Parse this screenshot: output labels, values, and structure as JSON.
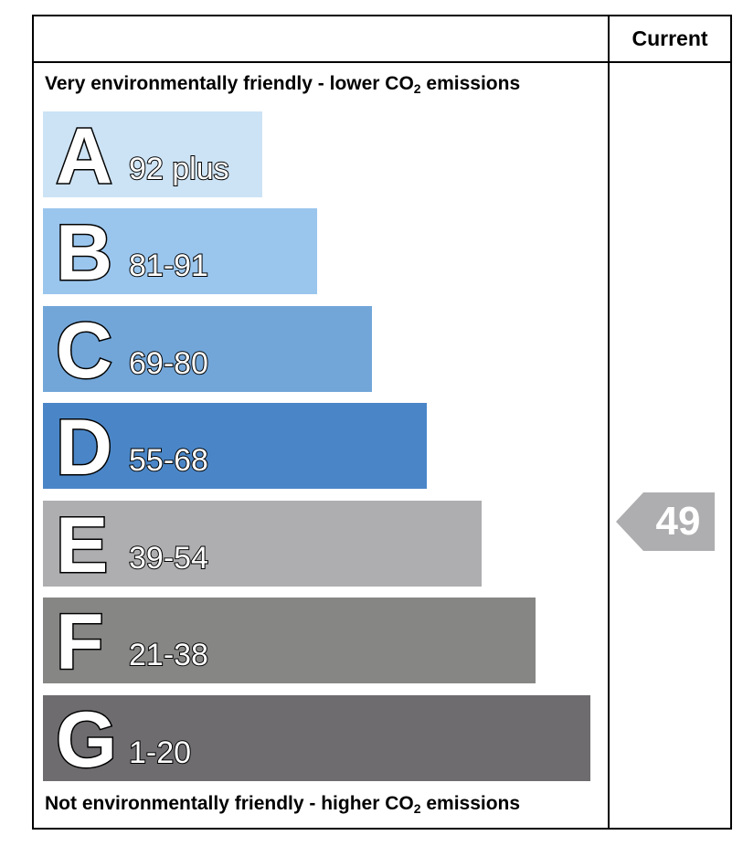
{
  "header": {
    "column_label": "Current"
  },
  "captions": {
    "top_prefix": "Very environmentally friendly - lower CO",
    "top_sub": "2",
    "top_suffix": " emissions",
    "bottom_prefix": "Not environmentally friendly - higher CO",
    "bottom_sub": "2",
    "bottom_suffix": " emissions"
  },
  "bands": [
    {
      "letter": "A",
      "range": "92 plus",
      "color": "#cce3f5"
    },
    {
      "letter": "B",
      "range": "81-91",
      "color": "#9ac6ee"
    },
    {
      "letter": "C",
      "range": "69-80",
      "color": "#72a6d9"
    },
    {
      "letter": "D",
      "range": "55-68",
      "color": "#4a86c7"
    },
    {
      "letter": "E",
      "range": "39-54",
      "color": "#aeadaf"
    },
    {
      "letter": "F",
      "range": "21-38",
      "color": "#868785"
    },
    {
      "letter": "G",
      "range": "1-20",
      "color": "#6e6c6f"
    }
  ],
  "current": {
    "value": "49",
    "band": "E",
    "color": "#aeadaf"
  }
}
